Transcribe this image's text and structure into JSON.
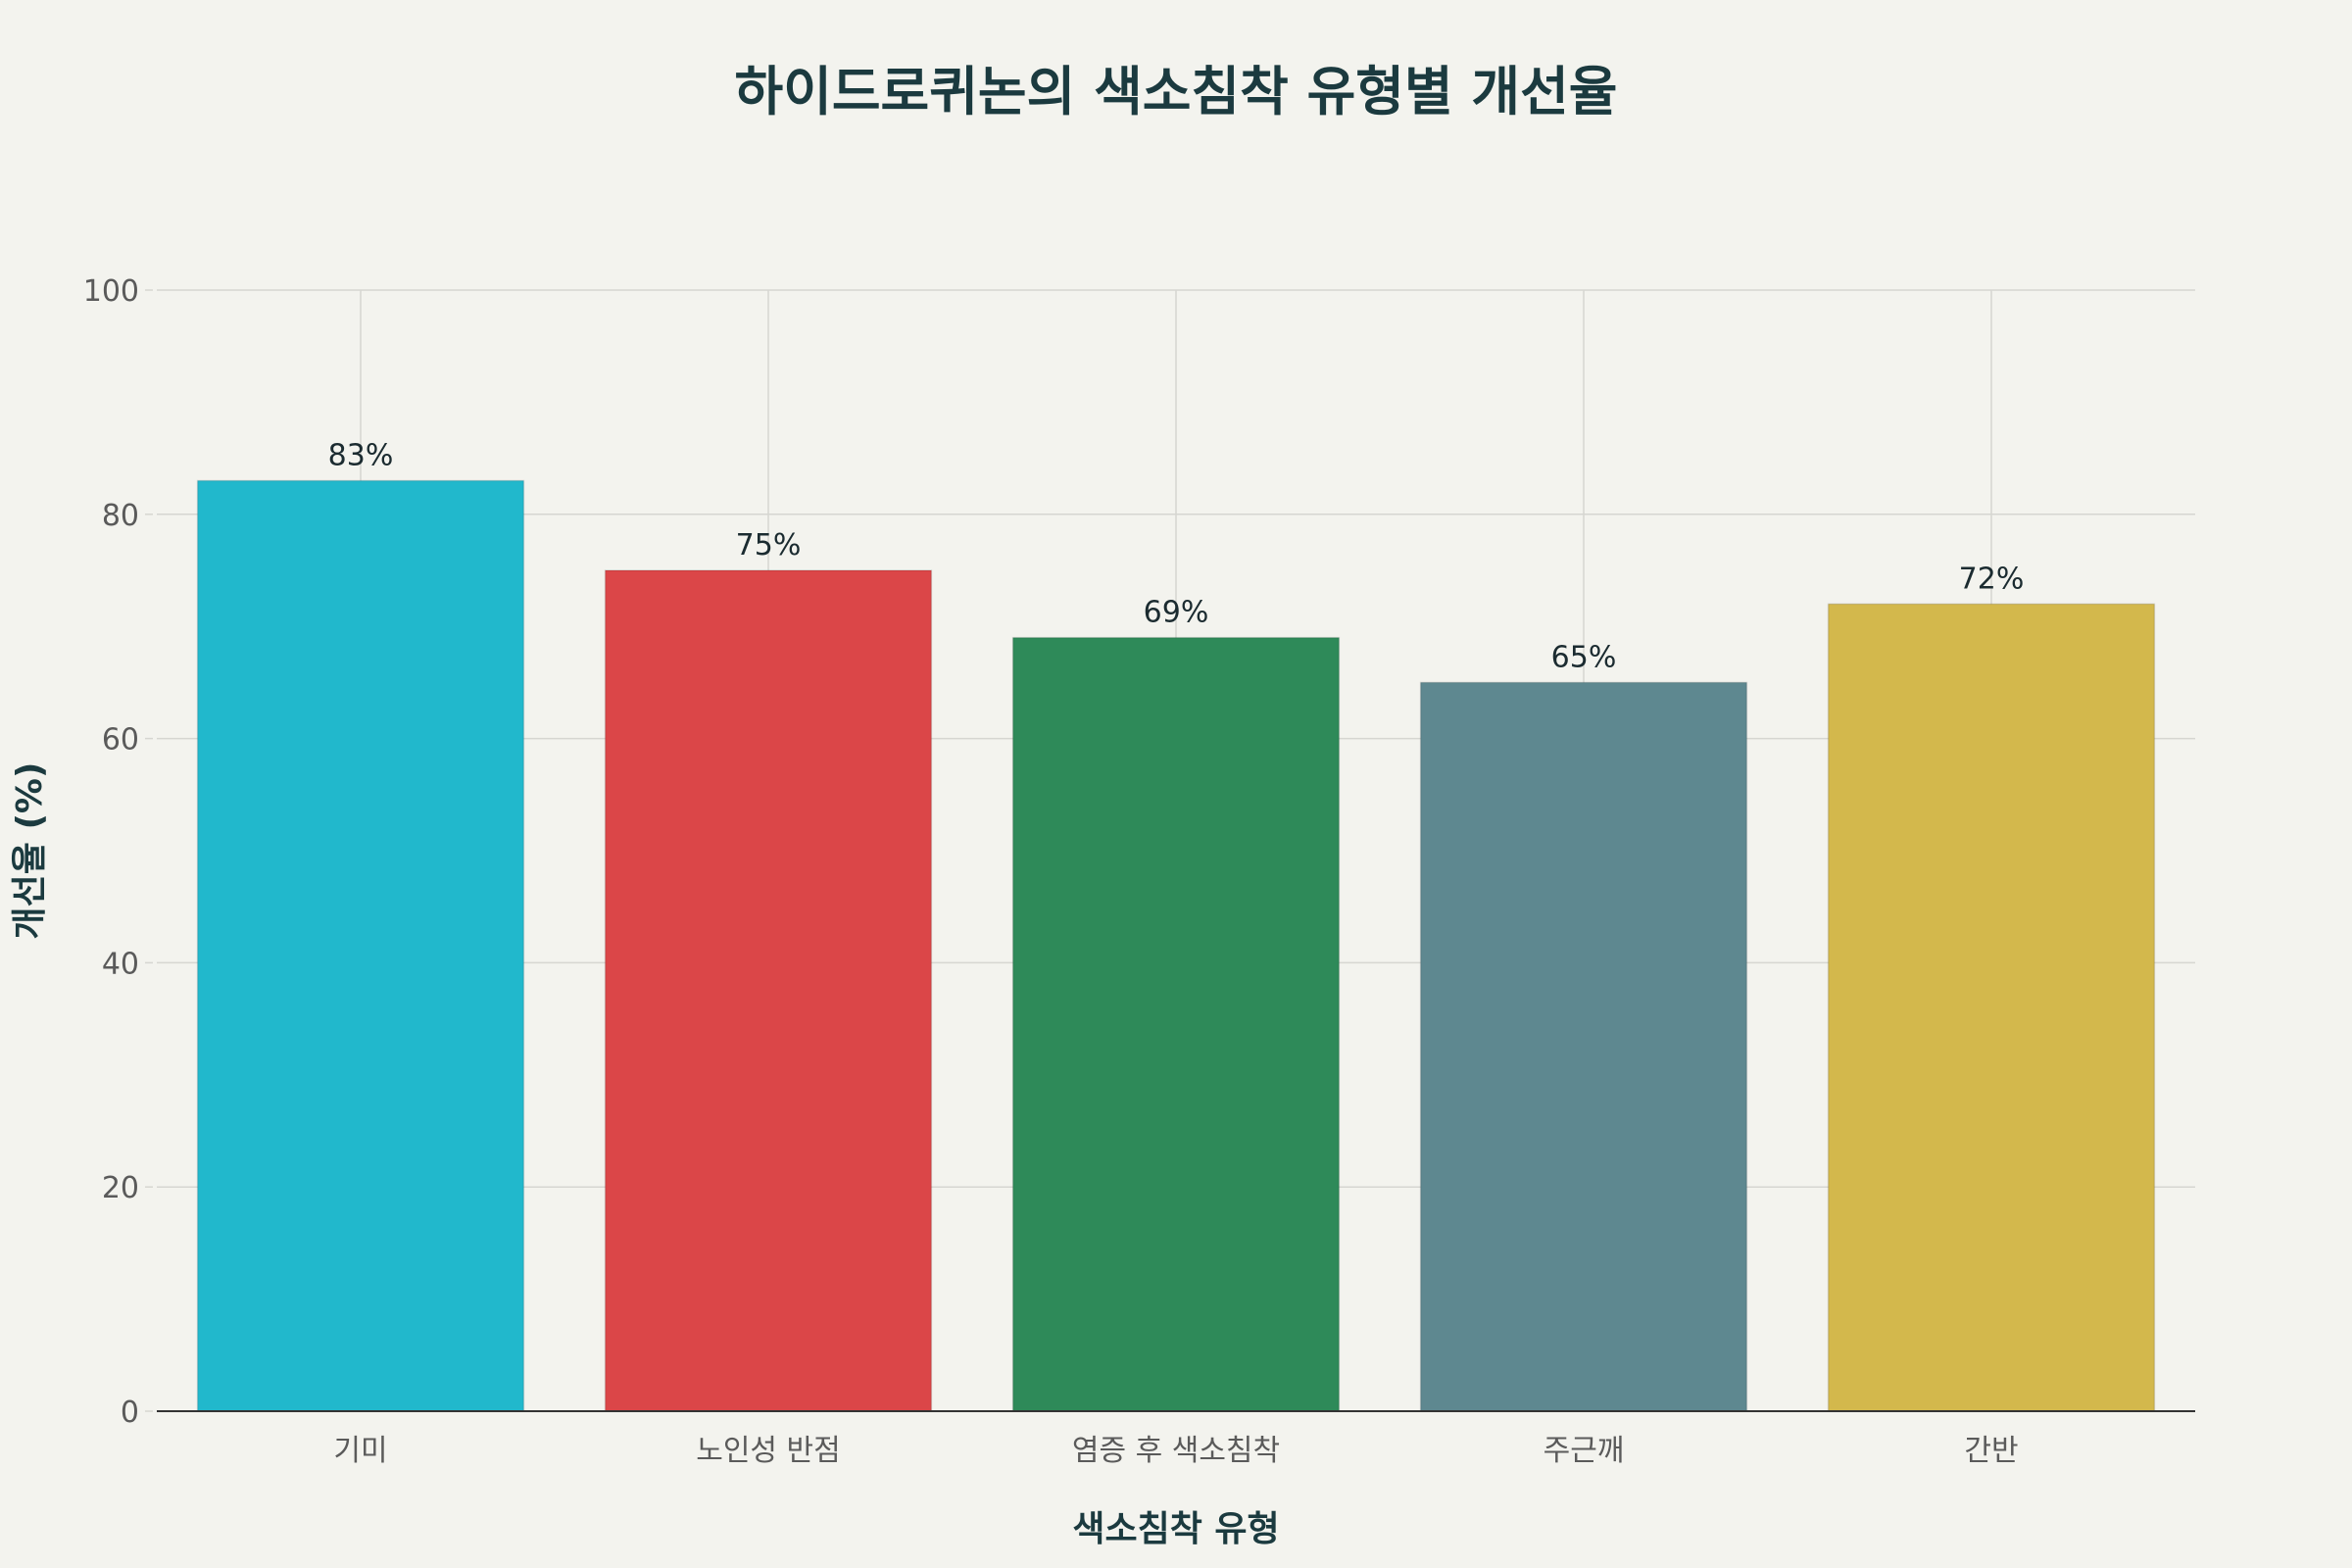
{
  "chart_data": {
    "type": "bar",
    "title": "하이드로퀴논의 색소침착 유형별 개선율",
    "xlabel": "색소침착 유형",
    "ylabel": "개선율 (%)",
    "categories": [
      "기미",
      "노인성 반점",
      "염증 후 색소침착",
      "주근깨",
      "간반"
    ],
    "values": [
      83,
      75,
      69,
      65,
      72
    ],
    "data_labels": [
      "83%",
      "75%",
      "69%",
      "65%",
      "72%"
    ],
    "colors": [
      "#21b8cc",
      "#db4648",
      "#2e8a59",
      "#5e8890",
      "#d3b84c"
    ],
    "ylim": [
      0,
      100
    ],
    "yticks": [
      0,
      20,
      40,
      60,
      80,
      100
    ],
    "grid": true,
    "legend": "none"
  }
}
